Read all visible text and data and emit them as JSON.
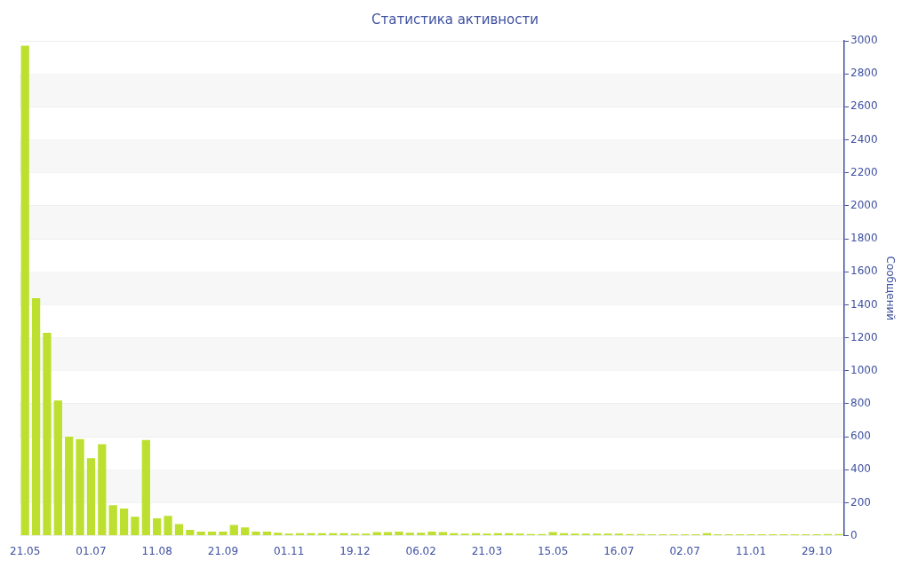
{
  "chart_data": {
    "type": "bar",
    "title": "Статистика активности",
    "ylabel": "Сообщений",
    "categories": [
      "21.05",
      null,
      null,
      null,
      null,
      null,
      "01.07",
      null,
      null,
      null,
      null,
      null,
      "11.08",
      null,
      null,
      null,
      null,
      null,
      "21.09",
      null,
      null,
      null,
      null,
      null,
      "01.11",
      null,
      null,
      null,
      null,
      null,
      "19.12",
      null,
      null,
      null,
      null,
      null,
      "06.02",
      null,
      null,
      null,
      null,
      null,
      "21.03",
      null,
      null,
      null,
      null,
      null,
      "15.05",
      null,
      null,
      null,
      null,
      null,
      "16.07",
      null,
      null,
      null,
      null,
      null,
      "02.07",
      null,
      null,
      null,
      null,
      null,
      "11.01",
      null,
      null,
      null,
      null,
      null,
      "29.10",
      null,
      null
    ],
    "values": [
      2970,
      1440,
      1230,
      820,
      600,
      585,
      470,
      555,
      185,
      165,
      115,
      580,
      105,
      120,
      70,
      35,
      25,
      25,
      25,
      65,
      50,
      25,
      25,
      18,
      12,
      15,
      15,
      15,
      15,
      15,
      12,
      12,
      22,
      22,
      25,
      18,
      18,
      25,
      22,
      15,
      12,
      15,
      12,
      15,
      15,
      12,
      10,
      10,
      22,
      15,
      12,
      12,
      12,
      12,
      12,
      10,
      10,
      8,
      8,
      8,
      8,
      8,
      15,
      8,
      8,
      8,
      8,
      8,
      8,
      8,
      8,
      8,
      8,
      10,
      10
    ],
    "color": "#bde030",
    "ylim": [
      0,
      3000
    ],
    "yticks": [
      0,
      200,
      400,
      600,
      800,
      1000,
      1200,
      1400,
      1600,
      1800,
      2000,
      2200,
      2400,
      2600,
      2800,
      3000
    ],
    "grid": "y"
  }
}
